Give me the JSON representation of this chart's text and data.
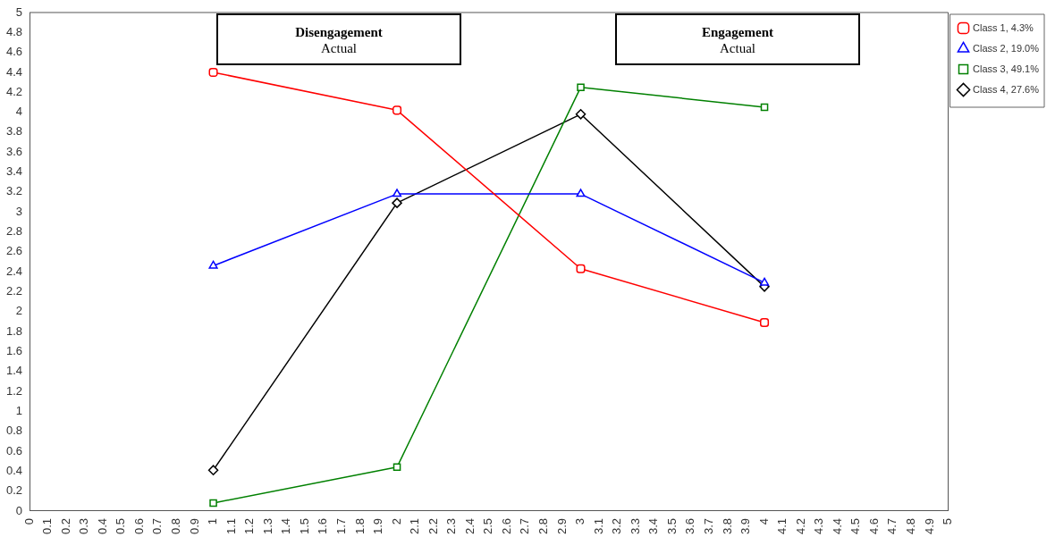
{
  "chart_data": {
    "type": "line",
    "x": [
      1,
      2,
      3,
      4
    ],
    "series": [
      {
        "name": "Class 1, 4.3%",
        "color": "#ff0000",
        "marker": "circle",
        "values": [
          4.4,
          4.02,
          2.43,
          1.89
        ]
      },
      {
        "name": "Class 2, 19.0%",
        "color": "#0000ff",
        "marker": "triangle",
        "values": [
          2.46,
          3.18,
          3.18,
          2.29
        ]
      },
      {
        "name": "Class 3, 49.1%",
        "color": "#008000",
        "marker": "square",
        "values": [
          0.08,
          0.44,
          4.25,
          4.05
        ]
      },
      {
        "name": "Class 4, 27.6%",
        "color": "#000000",
        "marker": "diamond",
        "values": [
          0.41,
          3.09,
          3.98,
          2.25
        ]
      }
    ],
    "xlim": [
      0,
      5
    ],
    "xticks": [
      0,
      0.1,
      0.2,
      0.3,
      0.4,
      0.5,
      0.6,
      0.7,
      0.8,
      0.9,
      1,
      1.1,
      1.2,
      1.3,
      1.4,
      1.5,
      1.6,
      1.7,
      1.8,
      1.9,
      2,
      2.1,
      2.2,
      2.3,
      2.4,
      2.5,
      2.6,
      2.7,
      2.8,
      2.9,
      3,
      3.1,
      3.2,
      3.3,
      3.4,
      3.5,
      3.6,
      3.7,
      3.8,
      3.9,
      4,
      4.1,
      4.2,
      4.3,
      4.4,
      4.5,
      4.6,
      4.7,
      4.8,
      4.9,
      5
    ],
    "ylim": [
      0,
      5
    ],
    "yticks": [
      0,
      0.2,
      0.4,
      0.6,
      0.8,
      1,
      1.2,
      1.4,
      1.6,
      1.8,
      2,
      2.2,
      2.4,
      2.6,
      2.8,
      3,
      3.2,
      3.4,
      3.6,
      3.8,
      4,
      4.2,
      4.4,
      4.6,
      4.8,
      5
    ],
    "annotations": [
      "Disengagement\nActual",
      "Engagement\nActual"
    ],
    "legend": "top right",
    "grid": false,
    "line_style": "solid"
  }
}
